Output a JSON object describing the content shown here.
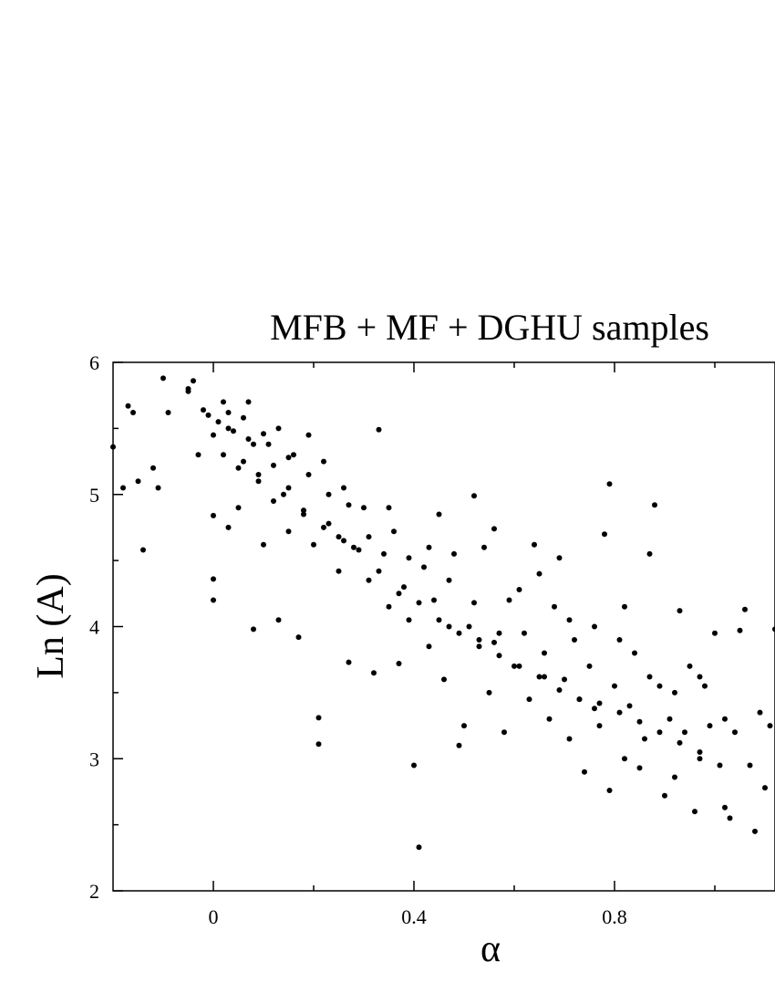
{
  "chart_data": {
    "type": "scatter",
    "title": "MFB + MF + DGHU samples",
    "xlabel": "α",
    "ylabel": "Ln (A)",
    "xlim": [
      -0.2,
      1.12
    ],
    "ylim": [
      2,
      6
    ],
    "x_ticks": [
      0,
      0.4,
      0.8
    ],
    "x_tick_labels": [
      "0",
      "0.4",
      "0.8"
    ],
    "y_ticks": [
      2,
      3,
      4,
      5,
      6
    ],
    "y_tick_labels": [
      "2",
      "3",
      "4",
      "5",
      "6"
    ],
    "grid": false,
    "marker_color": "#000000",
    "points": [
      [
        -0.2,
        5.36
      ],
      [
        -0.18,
        5.05
      ],
      [
        -0.17,
        5.67
      ],
      [
        -0.16,
        5.62
      ],
      [
        -0.15,
        5.1
      ],
      [
        -0.14,
        4.58
      ],
      [
        -0.12,
        5.2
      ],
      [
        -0.11,
        5.05
      ],
      [
        -0.1,
        5.88
      ],
      [
        -0.09,
        5.62
      ],
      [
        -0.05,
        5.78
      ],
      [
        -0.05,
        5.8
      ],
      [
        -0.04,
        5.86
      ],
      [
        -0.03,
        5.3
      ],
      [
        -0.02,
        5.64
      ],
      [
        -0.01,
        5.6
      ],
      [
        0.0,
        5.45
      ],
      [
        0.0,
        4.84
      ],
      [
        0.0,
        4.36
      ],
      [
        0.0,
        4.2
      ],
      [
        0.01,
        5.55
      ],
      [
        0.02,
        5.7
      ],
      [
        0.02,
        5.3
      ],
      [
        0.03,
        5.62
      ],
      [
        0.03,
        4.75
      ],
      [
        0.04,
        5.48
      ],
      [
        0.05,
        5.2
      ],
      [
        0.05,
        4.9
      ],
      [
        0.06,
        5.58
      ],
      [
        0.07,
        5.7
      ],
      [
        0.08,
        5.38
      ],
      [
        0.08,
        3.98
      ],
      [
        0.09,
        5.1
      ],
      [
        0.1,
        5.46
      ],
      [
        0.1,
        4.62
      ],
      [
        0.12,
        5.22
      ],
      [
        0.12,
        4.95
      ],
      [
        0.13,
        5.5
      ],
      [
        0.13,
        4.05
      ],
      [
        0.15,
        5.05
      ],
      [
        0.15,
        4.72
      ],
      [
        0.16,
        5.3
      ],
      [
        0.17,
        3.92
      ],
      [
        0.18,
        4.88
      ],
      [
        0.19,
        5.45
      ],
      [
        0.2,
        4.62
      ],
      [
        0.21,
        3.31
      ],
      [
        0.21,
        3.11
      ],
      [
        0.22,
        5.25
      ],
      [
        0.23,
        4.78
      ],
      [
        0.25,
        4.68
      ],
      [
        0.25,
        4.42
      ],
      [
        0.26,
        5.05
      ],
      [
        0.27,
        3.73
      ],
      [
        0.28,
        4.6
      ],
      [
        0.3,
        4.9
      ],
      [
        0.31,
        4.35
      ],
      [
        0.32,
        3.65
      ],
      [
        0.33,
        5.49
      ],
      [
        0.34,
        4.55
      ],
      [
        0.35,
        4.15
      ],
      [
        0.36,
        4.72
      ],
      [
        0.37,
        3.72
      ],
      [
        0.38,
        4.3
      ],
      [
        0.39,
        4.05
      ],
      [
        0.4,
        2.95
      ],
      [
        0.41,
        2.33
      ],
      [
        0.42,
        4.45
      ],
      [
        0.43,
        3.85
      ],
      [
        0.44,
        4.2
      ],
      [
        0.45,
        4.85
      ],
      [
        0.46,
        3.6
      ],
      [
        0.47,
        4.0
      ],
      [
        0.48,
        4.55
      ],
      [
        0.49,
        3.1
      ],
      [
        0.5,
        3.25
      ],
      [
        0.51,
        4.0
      ],
      [
        0.52,
        4.99
      ],
      [
        0.53,
        3.85
      ],
      [
        0.54,
        4.6
      ],
      [
        0.55,
        3.5
      ],
      [
        0.56,
        4.74
      ],
      [
        0.57,
        3.95
      ],
      [
        0.58,
        3.2
      ],
      [
        0.59,
        4.2
      ],
      [
        0.6,
        3.7
      ],
      [
        0.62,
        3.95
      ],
      [
        0.63,
        3.45
      ],
      [
        0.64,
        4.62
      ],
      [
        0.65,
        4.4
      ],
      [
        0.66,
        3.8
      ],
      [
        0.67,
        3.3
      ],
      [
        0.68,
        4.15
      ],
      [
        0.69,
        4.52
      ],
      [
        0.7,
        3.6
      ],
      [
        0.71,
        3.15
      ],
      [
        0.72,
        3.9
      ],
      [
        0.73,
        3.45
      ],
      [
        0.74,
        2.9
      ],
      [
        0.75,
        3.7
      ],
      [
        0.76,
        4.0
      ],
      [
        0.77,
        3.25
      ],
      [
        0.78,
        4.7
      ],
      [
        0.79,
        2.76
      ],
      [
        0.79,
        5.08
      ],
      [
        0.8,
        3.55
      ],
      [
        0.81,
        3.9
      ],
      [
        0.82,
        3.0
      ],
      [
        0.83,
        3.4
      ],
      [
        0.84,
        3.8
      ],
      [
        0.85,
        2.93
      ],
      [
        0.86,
        3.15
      ],
      [
        0.87,
        4.55
      ],
      [
        0.88,
        4.92
      ],
      [
        0.89,
        3.55
      ],
      [
        0.9,
        2.72
      ],
      [
        0.91,
        3.3
      ],
      [
        0.92,
        2.86
      ],
      [
        0.93,
        4.12
      ],
      [
        0.94,
        3.2
      ],
      [
        0.95,
        3.7
      ],
      [
        0.96,
        2.6
      ],
      [
        0.97,
        3.0
      ],
      [
        0.98,
        3.55
      ],
      [
        0.99,
        3.25
      ],
      [
        1.0,
        3.95
      ],
      [
        1.01,
        2.95
      ],
      [
        1.02,
        3.3
      ],
      [
        1.03,
        2.55
      ],
      [
        1.04,
        3.2
      ],
      [
        1.05,
        3.97
      ],
      [
        1.06,
        4.13
      ],
      [
        1.07,
        2.95
      ],
      [
        1.08,
        2.45
      ],
      [
        1.09,
        3.35
      ],
      [
        1.1,
        2.78
      ],
      [
        1.11,
        3.25
      ],
      [
        1.12,
        3.98
      ],
      [
        1.02,
        2.63
      ],
      [
        0.97,
        3.62
      ],
      [
        0.92,
        3.5
      ],
      [
        0.87,
        3.62
      ],
      [
        0.82,
        4.15
      ],
      [
        0.76,
        3.38
      ],
      [
        0.71,
        4.05
      ],
      [
        0.66,
        3.62
      ],
      [
        0.61,
        4.28
      ],
      [
        0.56,
        3.88
      ],
      [
        0.52,
        4.18
      ],
      [
        0.47,
        4.35
      ],
      [
        0.43,
        4.6
      ],
      [
        0.39,
        4.52
      ],
      [
        0.35,
        4.9
      ],
      [
        0.31,
        4.68
      ],
      [
        0.27,
        4.92
      ],
      [
        0.23,
        5.0
      ],
      [
        0.19,
        5.15
      ],
      [
        0.15,
        5.28
      ],
      [
        0.11,
        5.38
      ],
      [
        0.07,
        5.42
      ],
      [
        0.03,
        5.5
      ],
      [
        0.06,
        5.25
      ],
      [
        0.09,
        5.15
      ],
      [
        0.14,
        5.0
      ],
      [
        0.18,
        4.85
      ],
      [
        0.22,
        4.75
      ],
      [
        0.26,
        4.65
      ],
      [
        0.29,
        4.58
      ],
      [
        0.33,
        4.42
      ],
      [
        0.37,
        4.25
      ],
      [
        0.41,
        4.18
      ],
      [
        0.45,
        4.05
      ],
      [
        0.49,
        3.95
      ],
      [
        0.53,
        3.9
      ],
      [
        0.57,
        3.78
      ],
      [
        0.61,
        3.7
      ],
      [
        0.65,
        3.62
      ],
      [
        0.69,
        3.52
      ],
      [
        0.73,
        3.45
      ],
      [
        0.77,
        3.42
      ],
      [
        0.81,
        3.35
      ],
      [
        0.85,
        3.28
      ],
      [
        0.89,
        3.2
      ],
      [
        0.93,
        3.12
      ],
      [
        0.97,
        3.05
      ]
    ]
  }
}
